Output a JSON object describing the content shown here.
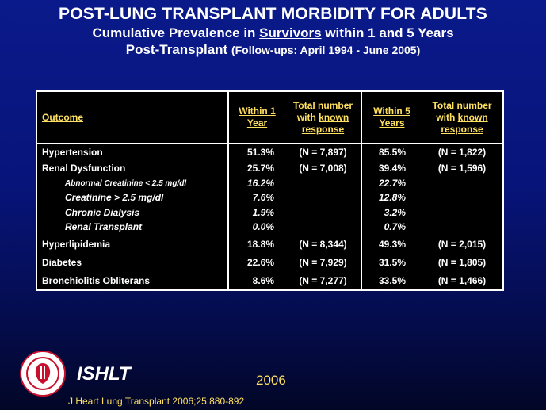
{
  "title": "POST-LUNG TRANSPLANT MORBIDITY FOR ADULTS",
  "subtitle1": {
    "pre": "Cumulative Prevalence in ",
    "underlined": "Survivors",
    "post": " within 1 and 5 Years"
  },
  "subtitle2": {
    "main": "Post-Transplant ",
    "small": "(Follow-ups: April 1994 - June 2005)"
  },
  "table": {
    "headers": {
      "outcome": "Outcome",
      "within1": [
        "Within 1",
        "Year"
      ],
      "total1": {
        "line1": "Total number",
        "line2_pre": "with ",
        "line2_u": "known",
        "line3": "response"
      },
      "within5": [
        "Within 5",
        "Years"
      ],
      "total5": {
        "line1": "Total number",
        "line2_pre": "with ",
        "line2_u": "known",
        "line3": "response"
      }
    },
    "rows": [
      {
        "name": "Hypertension",
        "y1": "51.3%",
        "n1": "(N = 7,897)",
        "y5": "85.5%",
        "n5": "(N = 1,822)"
      },
      {
        "name": "Renal Dysfunction",
        "y1": "25.7%",
        "n1": "(N = 7,008)",
        "y5": "39.4%",
        "n5": "(N = 1,596)"
      },
      {
        "name": "Abnormal Creatinine < 2.5 mg/dl",
        "y1": "16.2%",
        "n1": "",
        "y5": "22.7%",
        "n5": ""
      },
      {
        "name": "Creatinine > 2.5 mg/dl",
        "y1": "7.6%",
        "n1": "",
        "y5": "12.8%",
        "n5": ""
      },
      {
        "name": "Chronic Dialysis",
        "y1": "1.9%",
        "n1": "",
        "y5": "3.2%",
        "n5": ""
      },
      {
        "name": "Renal Transplant",
        "y1": "0.0%",
        "n1": "",
        "y5": "0.7%",
        "n5": ""
      },
      {
        "name": "Hyperlipidemia",
        "y1": "18.8%",
        "n1": "(N = 8,344)",
        "y5": "49.3%",
        "n5": "(N = 2,015)"
      },
      {
        "name": "Diabetes",
        "y1": "22.6%",
        "n1": "(N = 7,929)",
        "y5": "31.5%",
        "n5": "(N = 1,805)"
      },
      {
        "name": "Bronchiolitis Obliterans",
        "y1": "8.6%",
        "n1": "(N = 7,277)",
        "y5": "33.5%",
        "n5": "(N = 1,466)"
      }
    ]
  },
  "footer": {
    "org": "ISHLT",
    "year": "2006",
    "citation": "J Heart Lung Transplant 2006;25:880-892"
  },
  "colors": {
    "accent": "#ffe060",
    "background": "#07147a",
    "table_bg": "#000000"
  },
  "icons": {
    "logo": "ishlt-seal-icon"
  }
}
